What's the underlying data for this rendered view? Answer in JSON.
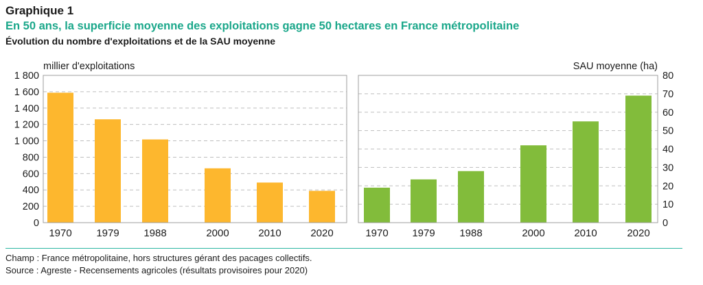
{
  "header": {
    "label": "Graphique 1",
    "title": "En 50 ans, la superficie moyenne des exploitations gagne 50 hectares en France métropolitaine",
    "subtitle": "Évolution du nombre d'exploitations et de la SAU moyenne"
  },
  "colors": {
    "left_bar": "#FDB72E",
    "right_bar": "#82BC3B",
    "accent": "#1AA78A"
  },
  "chart_data": [
    {
      "type": "bar",
      "ylabel": "millier d'exploitations",
      "categories": [
        "1970",
        "1979",
        "1988",
        "2000",
        "2010",
        "2020"
      ],
      "values": [
        1588,
        1263,
        1017,
        664,
        490,
        389
      ],
      "ylim": [
        0,
        1800
      ],
      "yticks": [
        "0",
        "200",
        "400",
        "600",
        "800",
        "1 000",
        "1 200",
        "1 400",
        "1 600",
        "1 800"
      ],
      "ytick_values": [
        0,
        200,
        400,
        600,
        800,
        1000,
        1200,
        1400,
        1600,
        1800
      ],
      "grid": true
    },
    {
      "type": "bar",
      "ylabel": "SAU moyenne (ha)",
      "categories": [
        "1970",
        "1979",
        "1988",
        "2000",
        "2010",
        "2020"
      ],
      "values": [
        19,
        23.5,
        28,
        42,
        55,
        69
      ],
      "ylim": [
        0,
        80
      ],
      "yticks": [
        "0",
        "10",
        "20",
        "30",
        "40",
        "50",
        "60",
        "70",
        "80"
      ],
      "ytick_values": [
        0,
        10,
        20,
        30,
        40,
        50,
        60,
        70,
        80
      ],
      "grid": true
    }
  ],
  "footer": {
    "champ": "Champ : France métropolitaine, hors structures gérant des pacages collectifs.",
    "source": "Source : Agreste - Recensements agricoles (résultats provisoires pour 2020)"
  }
}
